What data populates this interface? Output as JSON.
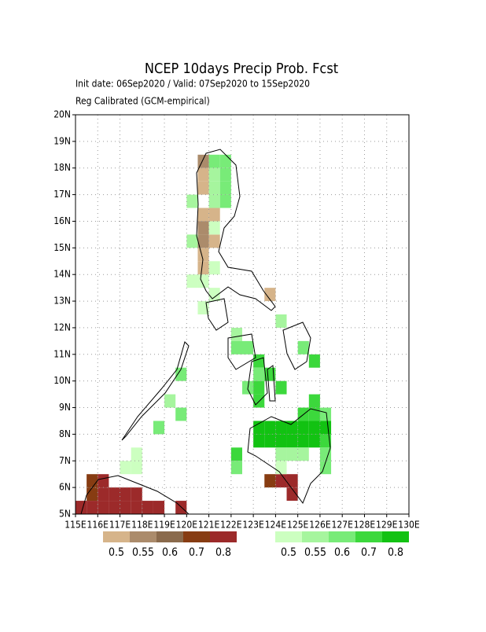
{
  "chart_data": {
    "type": "grid-map",
    "title": "NCEP 10days Precip Prob. Fcst",
    "subtitle": "Init date: 06Sep2020 / Valid: 07Sep2020 to 15Sep2020",
    "subtitle2": "Reg Calibrated (GCM-empirical)",
    "xlim": [
      115,
      130
    ],
    "ylim": [
      5,
      20
    ],
    "grid": true,
    "xticks": [
      {
        "value": 115,
        "label": "115E"
      },
      {
        "value": 116,
        "label": "116E"
      },
      {
        "value": 117,
        "label": "117E"
      },
      {
        "value": 118,
        "label": "118E"
      },
      {
        "value": 119,
        "label": "119E"
      },
      {
        "value": 120,
        "label": "120E"
      },
      {
        "value": 121,
        "label": "121E"
      },
      {
        "value": 122,
        "label": "122E"
      },
      {
        "value": 123,
        "label": "123E"
      },
      {
        "value": 124,
        "label": "124E"
      },
      {
        "value": 125,
        "label": "125E"
      },
      {
        "value": 126,
        "label": "126E"
      },
      {
        "value": 127,
        "label": "127E"
      },
      {
        "value": 128,
        "label": "128E"
      },
      {
        "value": 129,
        "label": "129E"
      },
      {
        "value": 130,
        "label": "130E"
      }
    ],
    "yticks": [
      {
        "value": 5,
        "label": "5N"
      },
      {
        "value": 6,
        "label": "6N"
      },
      {
        "value": 7,
        "label": "7N"
      },
      {
        "value": 8,
        "label": "8N"
      },
      {
        "value": 9,
        "label": "9N"
      },
      {
        "value": 10,
        "label": "10N"
      },
      {
        "value": 11,
        "label": "11N"
      },
      {
        "value": 12,
        "label": "12N"
      },
      {
        "value": 13,
        "label": "13N"
      },
      {
        "value": 14,
        "label": "14N"
      },
      {
        "value": 15,
        "label": "15N"
      },
      {
        "value": 16,
        "label": "16N"
      },
      {
        "value": 17,
        "label": "17N"
      },
      {
        "value": 18,
        "label": "18N"
      },
      {
        "value": 19,
        "label": "19N"
      },
      {
        "value": 20,
        "label": "20N"
      }
    ],
    "legend_labels": [
      "0.5",
      "0.55",
      "0.6",
      "0.7",
      "0.8"
    ],
    "dry_colors": [
      "#d6b48a",
      "#ab8b6b",
      "#8a6a4c",
      "#873c12",
      "#9c2a2a"
    ],
    "wet_colors": [
      "#ccffc0",
      "#a6f59e",
      "#78eb78",
      "#3cd83c",
      "#12c212"
    ],
    "cell_size": 0.5,
    "cells_dry": [
      [
        120.5,
        18,
        1
      ],
      [
        120.5,
        17.5,
        0
      ],
      [
        120.5,
        17,
        0
      ],
      [
        120.5,
        16,
        0
      ],
      [
        120.5,
        15.5,
        1
      ],
      [
        120.5,
        15,
        1
      ],
      [
        120.5,
        14.5,
        0
      ],
      [
        120.5,
        14,
        0
      ],
      [
        121,
        16,
        0
      ],
      [
        121,
        15,
        0
      ],
      [
        123.5,
        13,
        0
      ],
      [
        115.5,
        6,
        3
      ],
      [
        115.5,
        5.5,
        3
      ],
      [
        115.5,
        5,
        4
      ],
      [
        115,
        5,
        4
      ],
      [
        116,
        6,
        4
      ],
      [
        116,
        5.5,
        4
      ],
      [
        116,
        5,
        4
      ],
      [
        116.5,
        5.5,
        4
      ],
      [
        116.5,
        5,
        4
      ],
      [
        117,
        5.5,
        4
      ],
      [
        117,
        5,
        4
      ],
      [
        117.5,
        5.5,
        4
      ],
      [
        117.5,
        5,
        4
      ],
      [
        118,
        5,
        4
      ],
      [
        118.5,
        5,
        4
      ],
      [
        119.5,
        5,
        4
      ],
      [
        123.5,
        6,
        3
      ],
      [
        124,
        6,
        4
      ],
      [
        124.5,
        6,
        4
      ],
      [
        124.5,
        5.5,
        4
      ]
    ],
    "cells_wet": [
      [
        121,
        18,
        2
      ],
      [
        121.5,
        18,
        2
      ],
      [
        121,
        17.5,
        1
      ],
      [
        121.5,
        17.5,
        2
      ],
      [
        121,
        17,
        1
      ],
      [
        121.5,
        17,
        2
      ],
      [
        120,
        16.5,
        1
      ],
      [
        121,
        16.5,
        1
      ],
      [
        121.5,
        16.5,
        2
      ],
      [
        121,
        15.5,
        0
      ],
      [
        120,
        15,
        1
      ],
      [
        121,
        14,
        0
      ],
      [
        120,
        13.5,
        0
      ],
      [
        120.5,
        13.5,
        0
      ],
      [
        121,
        13,
        0
      ],
      [
        120.5,
        12.5,
        0
      ],
      [
        122,
        11.5,
        1
      ],
      [
        122,
        11,
        2
      ],
      [
        122.5,
        11,
        2
      ],
      [
        123,
        10.5,
        3
      ],
      [
        123,
        10,
        2
      ],
      [
        123.5,
        10,
        3
      ],
      [
        122.5,
        9.5,
        2
      ],
      [
        123,
        9.5,
        3
      ],
      [
        124,
        9.5,
        3
      ],
      [
        123,
        9,
        3
      ],
      [
        124,
        12,
        1
      ],
      [
        125,
        11,
        2
      ],
      [
        125.5,
        10.5,
        3
      ],
      [
        125.5,
        9,
        3
      ],
      [
        119,
        9,
        1
      ],
      [
        119.5,
        8.5,
        2
      ],
      [
        118.5,
        8,
        2
      ],
      [
        119.5,
        10,
        2
      ],
      [
        117,
        6.5,
        0
      ],
      [
        117.5,
        6.5,
        0
      ],
      [
        117.5,
        7,
        0
      ],
      [
        123,
        8,
        4
      ],
      [
        123.5,
        8,
        4
      ],
      [
        124,
        8,
        4
      ],
      [
        124.5,
        8,
        4
      ],
      [
        125,
        8,
        4
      ],
      [
        125.5,
        8,
        4
      ],
      [
        126,
        8,
        4
      ],
      [
        123,
        7.5,
        4
      ],
      [
        123.5,
        7.5,
        4
      ],
      [
        124,
        7.5,
        4
      ],
      [
        124.5,
        7.5,
        4
      ],
      [
        125,
        7.5,
        4
      ],
      [
        125.5,
        7.5,
        4
      ],
      [
        126,
        7.5,
        3
      ],
      [
        122,
        7,
        3
      ],
      [
        122,
        6.5,
        2
      ],
      [
        125,
        8.5,
        3
      ],
      [
        125.5,
        8.5,
        3
      ],
      [
        126,
        8.5,
        2
      ],
      [
        124,
        7,
        1
      ],
      [
        124.5,
        7,
        1
      ],
      [
        125,
        7,
        1
      ],
      [
        126,
        6.5,
        2
      ],
      [
        124,
        6.5,
        0
      ],
      [
        126,
        7,
        2
      ]
    ]
  }
}
